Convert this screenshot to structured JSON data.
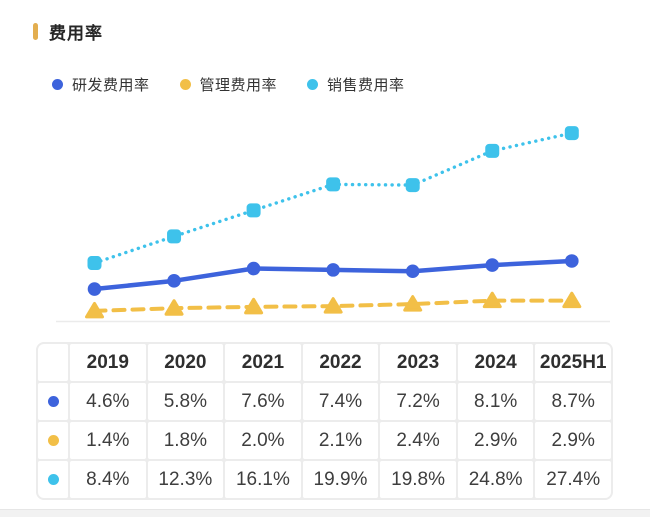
{
  "header": {
    "title": "费用率"
  },
  "accent_color": "#E3AE4F",
  "chart_data": {
    "type": "line",
    "title": "费用率",
    "categories": [
      "2019",
      "2020",
      "2021",
      "2022",
      "2023",
      "2024",
      "2025H1"
    ],
    "series": [
      {
        "name": "研发费用率",
        "color": "#3D63DC",
        "marker": "circle",
        "line_style": "solid",
        "values": [
          4.6,
          5.8,
          7.6,
          7.4,
          7.2,
          8.1,
          8.7
        ]
      },
      {
        "name": "管理费用率",
        "color": "#F2BF47",
        "marker": "triangle",
        "line_style": "dashed",
        "values": [
          1.4,
          1.8,
          2.0,
          2.1,
          2.4,
          2.9,
          2.9
        ]
      },
      {
        "name": "销售费用率",
        "color": "#3EC2EB",
        "marker": "square",
        "line_style": "dotted",
        "values": [
          8.4,
          12.3,
          16.1,
          19.9,
          19.8,
          24.8,
          27.4
        ]
      }
    ],
    "unit": "%",
    "ylim": [
      0,
      30
    ],
    "grid": false,
    "axis_line_color": "#ebebeb",
    "legend_position": "top"
  },
  "table": {
    "columns": [
      "2019",
      "2020",
      "2021",
      "2022",
      "2023",
      "2024",
      "2025H1"
    ],
    "rows": [
      {
        "series": "研发费用率",
        "values": [
          "4.6%",
          "5.8%",
          "7.6%",
          "7.4%",
          "7.2%",
          "8.1%",
          "8.7%"
        ]
      },
      {
        "series": "管理费用率",
        "values": [
          "1.4%",
          "1.8%",
          "2.0%",
          "2.1%",
          "2.4%",
          "2.9%",
          "2.9%"
        ]
      },
      {
        "series": "销售费用率",
        "values": [
          "8.4%",
          "12.3%",
          "16.1%",
          "19.9%",
          "19.8%",
          "24.8%",
          "27.4%"
        ]
      }
    ]
  }
}
